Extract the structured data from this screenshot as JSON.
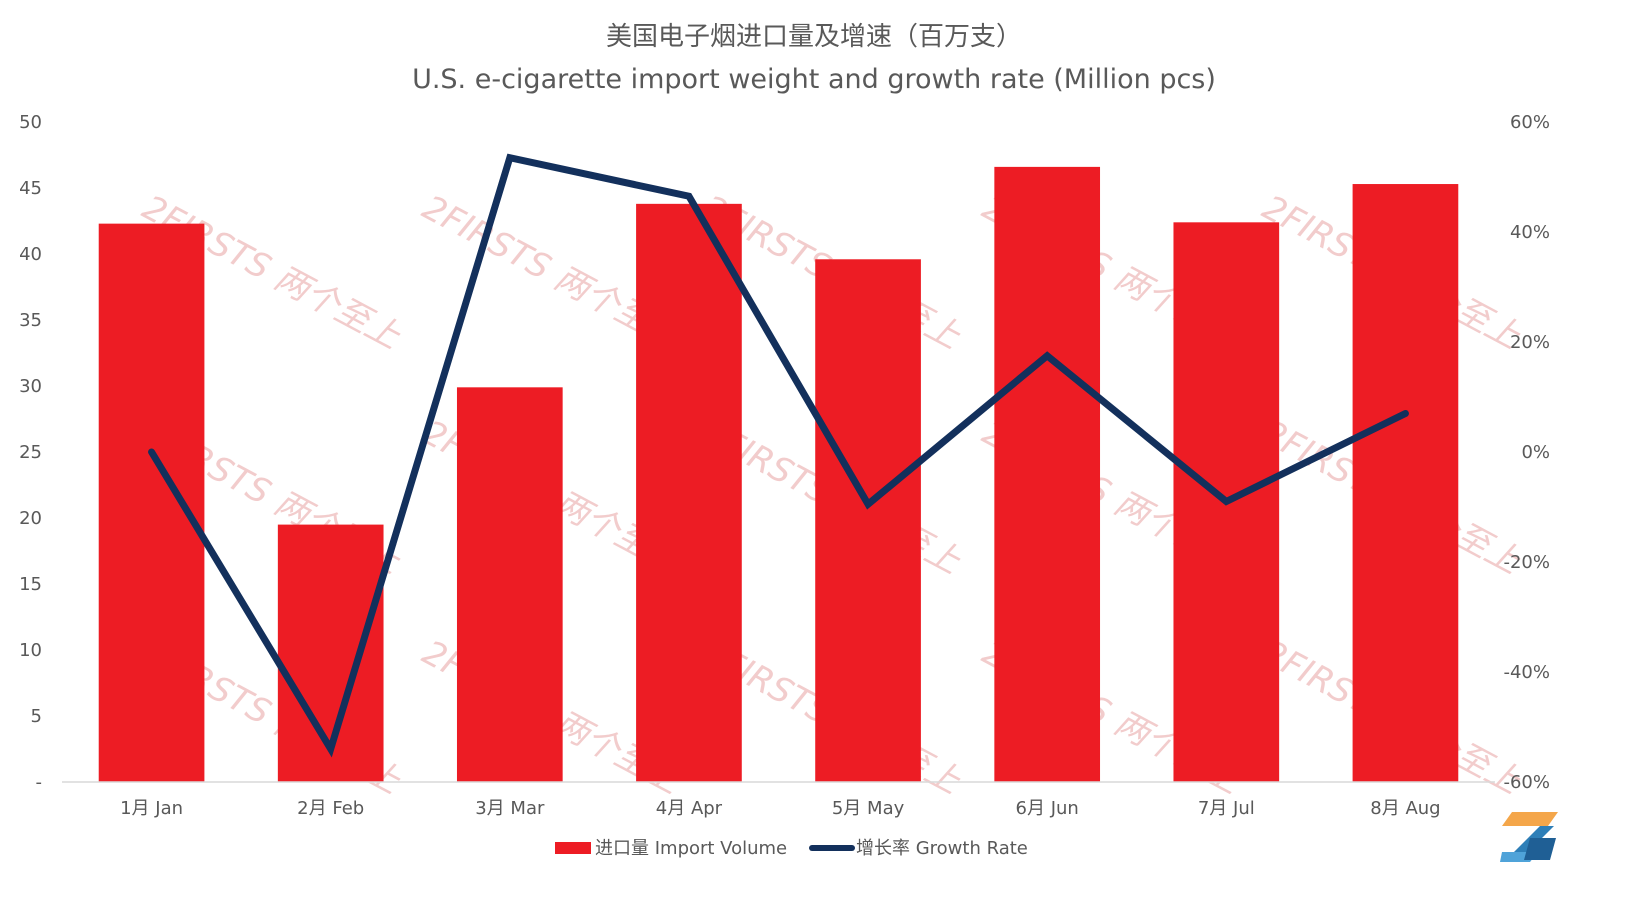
{
  "chart_data": {
    "type": "bar+line",
    "title": "美国电子烟进口量及增速（百万支）",
    "subtitle": "U.S. e-cigarette import weight and growth rate (Million pcs)",
    "categories": [
      "1月 Jan",
      "2月 Feb",
      "3月 Mar",
      "4月 Apr",
      "5月 May",
      "6月 Jun",
      "7月 Jul",
      "8月 Aug"
    ],
    "series": [
      {
        "name": "进口量 Import Volume",
        "type": "bar",
        "axis": "left",
        "color": "#ed1c24",
        "values": [
          42.3,
          19.5,
          29.9,
          43.8,
          39.6,
          46.6,
          42.4,
          45.3
        ]
      },
      {
        "name": "增长率 Growth Rate",
        "type": "line",
        "axis": "right",
        "color": "#13305c",
        "values": [
          0.0,
          -54.0,
          53.5,
          46.5,
          -9.5,
          17.5,
          -9.0,
          7.0
        ]
      }
    ],
    "yLeft": {
      "range": [
        0,
        50
      ],
      "ticks": [
        0,
        5,
        10,
        15,
        20,
        25,
        30,
        35,
        40,
        45,
        50
      ],
      "tickLabels": [
        "-",
        "5",
        "10",
        "15",
        "20",
        "25",
        "30",
        "35",
        "40",
        "45",
        "50"
      ]
    },
    "yRight": {
      "range": [
        -60,
        60
      ],
      "ticks": [
        -60,
        -40,
        -20,
        0,
        20,
        40,
        60
      ],
      "tickLabels": [
        "-60%",
        "-40%",
        "-20%",
        "0%",
        "20%",
        "40%",
        "60%"
      ]
    },
    "grid": false,
    "legend": "bottom"
  },
  "watermark": "2FIRSTS 两个至上"
}
